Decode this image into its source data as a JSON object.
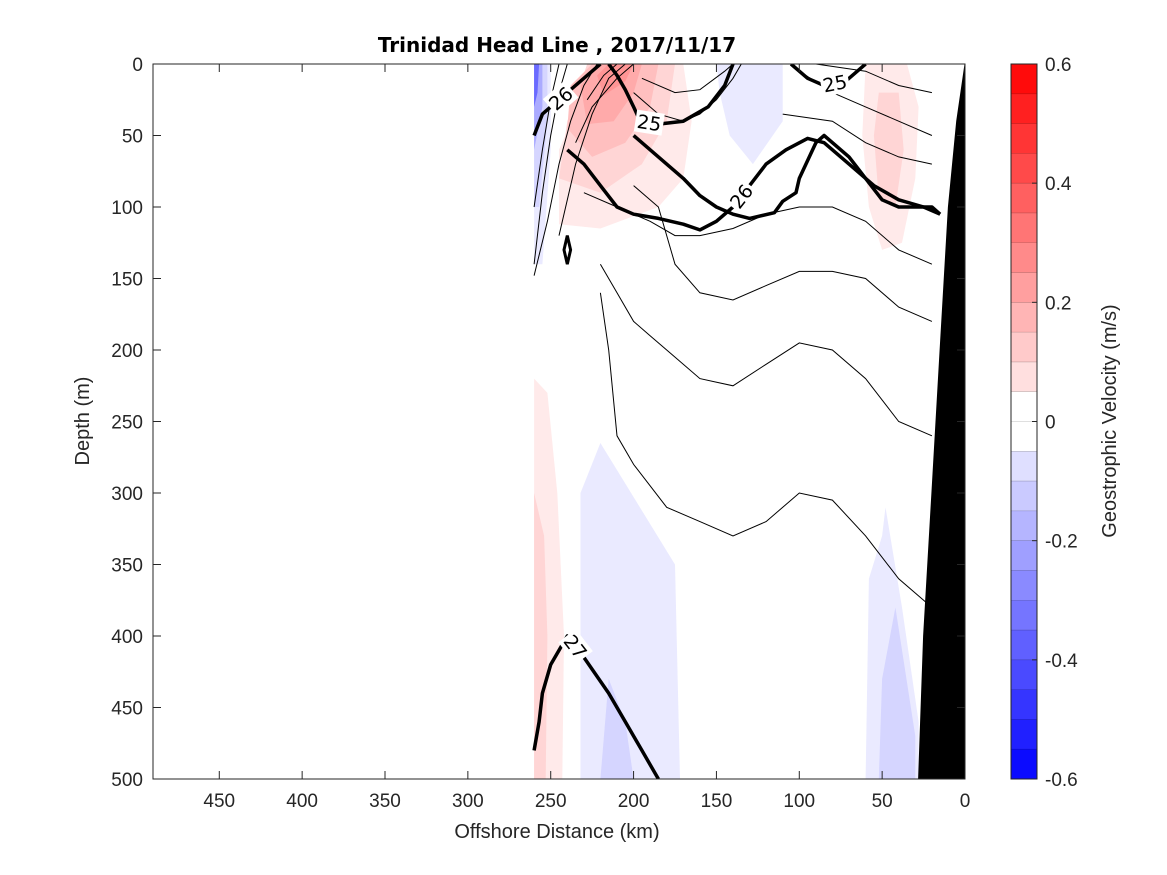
{
  "chart_data": {
    "type": "heatmap",
    "title": "Trinidad Head Line , 2017/11/17",
    "xlabel": "Offshore Distance (km)",
    "ylabel": "Depth (m)",
    "colorbar_label": "Geostrophic Velocity (m/s)",
    "xlim": [
      490,
      0
    ],
    "ylim": [
      0,
      500
    ],
    "x_reversed": true,
    "y_reversed": true,
    "x_ticks": [
      "450",
      "400",
      "350",
      "300",
      "250",
      "200",
      "150",
      "100",
      "50",
      "0"
    ],
    "y_ticks": [
      "0",
      "50",
      "100",
      "150",
      "200",
      "250",
      "300",
      "350",
      "400",
      "450",
      "500"
    ],
    "colorbar": {
      "range": [
        -0.6,
        0.6
      ],
      "step": 0.05,
      "ticks": [
        "0.6",
        "0.4",
        "0.2",
        "0",
        "-0.2",
        "-0.4",
        "-0.6"
      ],
      "positive_color": "#ff0000",
      "negative_color": "#0000ff",
      "neutral_color": "#ffffff"
    },
    "velocity_patches": [
      {
        "value": 0.05,
        "points": [
          [
            220,
            0
          ],
          [
            170,
            0
          ],
          [
            165,
            40
          ],
          [
            170,
            80
          ],
          [
            185,
            100
          ],
          [
            220,
            115
          ],
          [
            245,
            112
          ],
          [
            245,
            60
          ],
          [
            230,
            20
          ]
        ]
      },
      {
        "value": 0.1,
        "points": [
          [
            228,
            0
          ],
          [
            175,
            0
          ],
          [
            180,
            40
          ],
          [
            195,
            70
          ],
          [
            220,
            90
          ],
          [
            245,
            80
          ],
          [
            240,
            40
          ]
        ]
      },
      {
        "value": 0.15,
        "points": [
          [
            225,
            0
          ],
          [
            185,
            0
          ],
          [
            190,
            30
          ],
          [
            205,
            55
          ],
          [
            225,
            65
          ],
          [
            240,
            45
          ],
          [
            238,
            15
          ]
        ]
      },
      {
        "value": 0.2,
        "points": [
          [
            220,
            0
          ],
          [
            195,
            0
          ],
          [
            200,
            20
          ],
          [
            212,
            40
          ],
          [
            228,
            42
          ],
          [
            232,
            15
          ]
        ]
      },
      {
        "value": 0.25,
        "points": [
          [
            215,
            0
          ],
          [
            200,
            0
          ],
          [
            205,
            12
          ],
          [
            218,
            22
          ],
          [
            222,
            8
          ]
        ]
      },
      {
        "value": 0.05,
        "points": [
          [
            60,
            0
          ],
          [
            35,
            0
          ],
          [
            28,
            30
          ],
          [
            30,
            80
          ],
          [
            38,
            125
          ],
          [
            50,
            130
          ],
          [
            58,
            100
          ],
          [
            62,
            50
          ]
        ]
      },
      {
        "value": 0.1,
        "points": [
          [
            52,
            20
          ],
          [
            40,
            20
          ],
          [
            37,
            60
          ],
          [
            42,
            100
          ],
          [
            52,
            95
          ],
          [
            55,
            50
          ]
        ]
      },
      {
        "value": 0.05,
        "points": [
          [
            260,
            220
          ],
          [
            252,
            230
          ],
          [
            246,
            300
          ],
          [
            242,
            400
          ],
          [
            243,
            500
          ],
          [
            260,
            500
          ]
        ]
      },
      {
        "value": 0.1,
        "points": [
          [
            260,
            300
          ],
          [
            254,
            330
          ],
          [
            252,
            400
          ],
          [
            253,
            500
          ],
          [
            260,
            500
          ]
        ]
      },
      {
        "value": -0.05,
        "points": [
          [
            150,
            0
          ],
          [
            110,
            0
          ],
          [
            110,
            40
          ],
          [
            128,
            70
          ],
          [
            142,
            50
          ],
          [
            148,
            20
          ]
        ]
      },
      {
        "value": -0.05,
        "points": [
          [
            260,
            0
          ],
          [
            250,
            0
          ],
          [
            250,
            60
          ],
          [
            255,
            140
          ],
          [
            260,
            140
          ]
        ]
      },
      {
        "value": -0.1,
        "points": [
          [
            260,
            0
          ],
          [
            252,
            0
          ],
          [
            252,
            40
          ],
          [
            257,
            100
          ],
          [
            260,
            100
          ]
        ]
      },
      {
        "value": -0.2,
        "points": [
          [
            260,
            0
          ],
          [
            255,
            0
          ],
          [
            255,
            30
          ],
          [
            260,
            60
          ]
        ]
      },
      {
        "value": -0.35,
        "points": [
          [
            260,
            0
          ],
          [
            257,
            0
          ],
          [
            258,
            20
          ],
          [
            260,
            30
          ]
        ]
      },
      {
        "value": -0.05,
        "points": [
          [
            220,
            265
          ],
          [
            232,
            300
          ],
          [
            232,
            500
          ],
          [
            172,
            500
          ],
          [
            175,
            350
          ]
        ]
      },
      {
        "value": -0.1,
        "points": [
          [
            215,
            430
          ],
          [
            220,
            500
          ],
          [
            200,
            500
          ],
          [
            205,
            460
          ]
        ]
      },
      {
        "value": -0.05,
        "points": [
          [
            48,
            310
          ],
          [
            50,
            330
          ],
          [
            58,
            360
          ],
          [
            60,
            500
          ],
          [
            28,
            500
          ],
          [
            28,
            460
          ],
          [
            38,
            380
          ]
        ]
      },
      {
        "value": -0.1,
        "points": [
          [
            42,
            380
          ],
          [
            50,
            430
          ],
          [
            52,
            500
          ],
          [
            30,
            500
          ],
          [
            30,
            470
          ]
        ]
      }
    ],
    "density_contours_thin": [
      [
        [
          260,
          100
        ],
        [
          255,
          60
        ],
        [
          250,
          25
        ],
        [
          245,
          0
        ]
      ],
      [
        [
          260,
          140
        ],
        [
          255,
          90
        ],
        [
          250,
          50
        ],
        [
          245,
          20
        ],
        [
          240,
          0
        ]
      ],
      [
        [
          260,
          148
        ],
        [
          252,
          110
        ],
        [
          245,
          70
        ],
        [
          238,
          40
        ],
        [
          230,
          15
        ],
        [
          222,
          0
        ]
      ],
      [
        [
          245,
          120
        ],
        [
          235,
          70
        ],
        [
          225,
          35
        ],
        [
          215,
          10
        ],
        [
          205,
          0
        ]
      ],
      [
        [
          235,
          55
        ],
        [
          225,
          30
        ],
        [
          210,
          10
        ],
        [
          200,
          0
        ]
      ],
      [
        [
          228,
          25
        ],
        [
          218,
          8
        ],
        [
          210,
          0
        ]
      ],
      [
        [
          200,
          20
        ],
        [
          185,
          35
        ],
        [
          170,
          40
        ],
        [
          160,
          35
        ],
        [
          150,
          25
        ],
        [
          140,
          10
        ],
        [
          135,
          0
        ]
      ],
      [
        [
          195,
          10
        ],
        [
          175,
          20
        ],
        [
          160,
          18
        ],
        [
          145,
          5
        ],
        [
          140,
          0
        ]
      ],
      [
        [
          230,
          90
        ],
        [
          210,
          100
        ],
        [
          190,
          110
        ],
        [
          175,
          120
        ],
        [
          160,
          120
        ],
        [
          140,
          115
        ],
        [
          120,
          105
        ],
        [
          100,
          100
        ],
        [
          80,
          100
        ],
        [
          60,
          110
        ],
        [
          40,
          130
        ],
        [
          20,
          140
        ]
      ],
      [
        [
          200,
          85
        ],
        [
          185,
          100
        ],
        [
          175,
          140
        ],
        [
          160,
          160
        ],
        [
          140,
          165
        ],
        [
          120,
          155
        ],
        [
          100,
          145
        ],
        [
          80,
          145
        ],
        [
          60,
          150
        ],
        [
          40,
          170
        ],
        [
          20,
          180
        ]
      ],
      [
        [
          220,
          140
        ],
        [
          210,
          160
        ],
        [
          200,
          180
        ],
        [
          190,
          190
        ],
        [
          175,
          205
        ],
        [
          160,
          220
        ],
        [
          140,
          225
        ],
        [
          120,
          210
        ],
        [
          100,
          195
        ],
        [
          80,
          200
        ],
        [
          60,
          220
        ],
        [
          40,
          250
        ],
        [
          20,
          260
        ]
      ],
      [
        [
          220,
          160
        ],
        [
          215,
          200
        ],
        [
          210,
          260
        ],
        [
          200,
          280
        ],
        [
          180,
          310
        ],
        [
          160,
          320
        ],
        [
          140,
          330
        ],
        [
          120,
          320
        ],
        [
          100,
          300
        ],
        [
          80,
          305
        ],
        [
          60,
          330
        ],
        [
          40,
          360
        ],
        [
          20,
          380
        ]
      ],
      [
        [
          90,
          0
        ],
        [
          60,
          5
        ],
        [
          40,
          15
        ],
        [
          20,
          20
        ]
      ],
      [
        [
          100,
          5
        ],
        [
          80,
          20
        ],
        [
          60,
          30
        ],
        [
          40,
          40
        ],
        [
          20,
          50
        ]
      ],
      [
        [
          110,
          35
        ],
        [
          80,
          40
        ],
        [
          60,
          55
        ],
        [
          40,
          65
        ],
        [
          20,
          70
        ]
      ]
    ],
    "density_contours_thick": [
      {
        "level": "26",
        "points": [
          [
            260,
            50
          ],
          [
            255,
            35
          ],
          [
            248,
            28
          ],
          [
            240,
            20
          ],
          [
            232,
            12
          ],
          [
            225,
            5
          ],
          [
            220,
            0
          ]
        ]
      },
      {
        "level": "",
        "points": [
          [
            200,
            50
          ],
          [
            185,
            65
          ],
          [
            170,
            80
          ],
          [
            160,
            92
          ],
          [
            150,
            100
          ],
          [
            140,
            105
          ],
          [
            130,
            108
          ],
          [
            115,
            104
          ],
          [
            110,
            96
          ],
          [
            102,
            90
          ],
          [
            100,
            80
          ],
          [
            90,
            55
          ],
          [
            85,
            50
          ],
          [
            70,
            65
          ],
          [
            60,
            80
          ],
          [
            50,
            95
          ],
          [
            40,
            100
          ],
          [
            20,
            100
          ],
          [
            15,
            105
          ]
        ]
      },
      {
        "level": "26",
        "points": [
          [
            240,
            60
          ],
          [
            230,
            70
          ],
          [
            220,
            85
          ],
          [
            210,
            100
          ],
          [
            200,
            105
          ],
          [
            185,
            108
          ],
          [
            170,
            112
          ],
          [
            160,
            116
          ],
          [
            150,
            110
          ],
          [
            140,
            100
          ],
          [
            130,
            85
          ],
          [
            120,
            70
          ],
          [
            108,
            60
          ],
          [
            95,
            52
          ],
          [
            85,
            55
          ],
          [
            70,
            70
          ],
          [
            55,
            85
          ],
          [
            40,
            95
          ],
          [
            25,
            100
          ],
          [
            15,
            105
          ]
        ]
      },
      {
        "level": "25",
        "points": [
          [
            215,
            0
          ],
          [
            210,
            8
          ],
          [
            205,
            18
          ],
          [
            200,
            30
          ],
          [
            196,
            40
          ],
          [
            185,
            42
          ],
          [
            170,
            40
          ],
          [
            155,
            30
          ],
          [
            145,
            15
          ],
          [
            140,
            0
          ]
        ]
      },
      {
        "level": "25",
        "points": [
          [
            105,
            0
          ],
          [
            95,
            10
          ],
          [
            85,
            15
          ],
          [
            72,
            12
          ],
          [
            65,
            5
          ],
          [
            60,
            0
          ]
        ]
      },
      {
        "level": "27",
        "points": [
          [
            260,
            480
          ],
          [
            257,
            460
          ],
          [
            255,
            440
          ],
          [
            250,
            420
          ],
          [
            240,
            400
          ],
          [
            230,
            415
          ],
          [
            215,
            440
          ],
          [
            205,
            460
          ],
          [
            195,
            480
          ],
          [
            185,
            500
          ]
        ]
      }
    ],
    "small_feature": [
      [
        240,
        120
      ],
      [
        238,
        130
      ],
      [
        240,
        140
      ],
      [
        242,
        130
      ]
    ],
    "bathymetry": [
      [
        0,
        0
      ],
      [
        0,
        500
      ],
      [
        28,
        500
      ],
      [
        25,
        400
      ],
      [
        20,
        300
      ],
      [
        15,
        200
      ],
      [
        10,
        100
      ],
      [
        5,
        40
      ]
    ]
  }
}
